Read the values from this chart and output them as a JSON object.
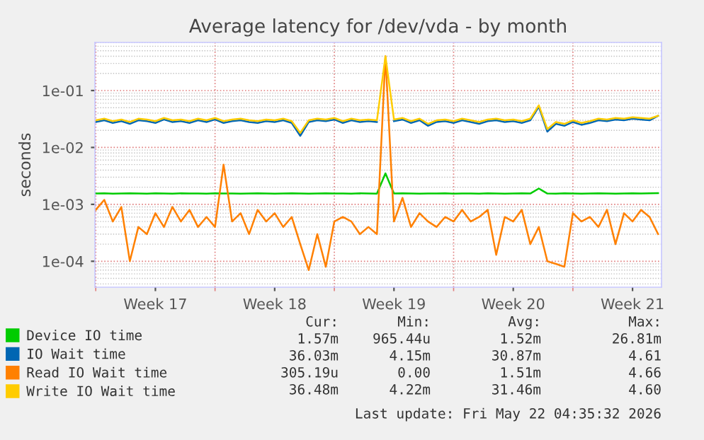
{
  "chart_data": {
    "type": "line",
    "title": "Average latency for /dev/vda - by month",
    "ylabel": "seconds",
    "categories": [
      null,
      null,
      null,
      null,
      null,
      null,
      null,
      "Week 17",
      null,
      null,
      null,
      null,
      null,
      null,
      null,
      null,
      null,
      null,
      null,
      null,
      null,
      "Week 18",
      null,
      null,
      null,
      null,
      null,
      null,
      null,
      null,
      null,
      null,
      null,
      null,
      null,
      "Week 19",
      null,
      null,
      null,
      null,
      null,
      null,
      null,
      null,
      null,
      null,
      null,
      null,
      null,
      "Week 20",
      null,
      null,
      null,
      null,
      null,
      null,
      null,
      null,
      null,
      null,
      null,
      null,
      null,
      "Week 21",
      null,
      null,
      null
    ],
    "series": [
      {
        "name": "Device IO time",
        "color": "#00cc00",
        "values": [
          0.00155,
          0.00156,
          0.00154,
          0.00155,
          0.00156,
          0.00155,
          0.00154,
          0.00156,
          0.00155,
          0.00154,
          0.00156,
          0.00155,
          0.00155,
          0.00154,
          0.00156,
          0.00155,
          0.00155,
          0.00154,
          0.00155,
          0.00156,
          0.00155,
          0.00154,
          0.00155,
          0.00156,
          0.00155,
          0.00154,
          0.00155,
          0.00156,
          0.00155,
          0.00155,
          0.00154,
          0.00156,
          0.00155,
          0.00154,
          0.0035,
          0.00155,
          0.00156,
          0.00155,
          0.00154,
          0.00155,
          0.00155,
          0.00156,
          0.00154,
          0.00155,
          0.00155,
          0.00154,
          0.00156,
          0.00155,
          0.00154,
          0.00155,
          0.00156,
          0.00155,
          0.0019,
          0.00155,
          0.00154,
          0.00156,
          0.00155,
          0.00154,
          0.00155,
          0.00156,
          0.00155,
          0.00154,
          0.00155,
          0.00156,
          0.00155,
          0.00156,
          0.00157
        ]
      },
      {
        "name": "IO Wait time",
        "color": "#0066b3",
        "values": [
          0.028,
          0.03,
          0.027,
          0.029,
          0.026,
          0.03,
          0.029,
          0.027,
          0.031,
          0.028,
          0.029,
          0.027,
          0.03,
          0.028,
          0.031,
          0.027,
          0.029,
          0.03,
          0.028,
          0.027,
          0.029,
          0.028,
          0.03,
          0.027,
          0.016,
          0.028,
          0.03,
          0.029,
          0.031,
          0.027,
          0.03,
          0.028,
          0.029,
          0.028,
          null,
          0.029,
          0.031,
          0.027,
          0.03,
          0.024,
          0.028,
          0.029,
          0.027,
          0.03,
          0.028,
          0.026,
          0.029,
          0.03,
          0.028,
          0.029,
          0.027,
          0.03,
          0.052,
          0.019,
          0.026,
          0.024,
          0.028,
          0.025,
          0.027,
          0.03,
          0.029,
          0.031,
          0.03,
          0.032,
          0.031,
          0.03,
          0.036
        ]
      },
      {
        "name": "Read IO Wait time",
        "color": "#ff8000",
        "values": [
          0.0008,
          0.0012,
          0.0005,
          0.0009,
          0.0001,
          0.0004,
          0.0003,
          0.0007,
          0.0004,
          0.0009,
          0.0005,
          0.0008,
          0.0004,
          0.0006,
          0.0004,
          0.005,
          0.0005,
          0.0007,
          0.0003,
          0.0008,
          0.0005,
          0.0007,
          0.0004,
          0.0006,
          0.0002,
          7e-05,
          0.0003,
          8e-05,
          0.0005,
          0.0006,
          0.0005,
          0.0003,
          0.0004,
          0.0003,
          0.4,
          0.0005,
          0.0013,
          0.0004,
          0.0007,
          0.0005,
          0.0004,
          0.0006,
          0.0005,
          0.0008,
          0.0005,
          0.0006,
          0.0008,
          0.00013,
          0.0006,
          0.0005,
          0.0008,
          0.0002,
          0.0004,
          0.0001,
          9e-05,
          8e-05,
          0.0007,
          0.0005,
          0.0006,
          0.0004,
          0.0008,
          0.0002,
          0.0007,
          0.0005,
          0.0008,
          0.0006,
          0.0003
        ]
      },
      {
        "name": "Write IO Wait time",
        "color": "#ffcc00",
        "values": [
          0.03,
          0.032,
          0.029,
          0.031,
          0.028,
          0.032,
          0.031,
          0.029,
          0.033,
          0.03,
          0.031,
          0.029,
          0.032,
          0.03,
          0.033,
          0.029,
          0.031,
          0.032,
          0.03,
          0.029,
          0.031,
          0.03,
          0.032,
          0.029,
          0.018,
          0.03,
          0.032,
          0.031,
          0.033,
          0.029,
          0.032,
          0.03,
          0.031,
          0.03,
          0.4,
          0.031,
          0.033,
          0.029,
          0.032,
          0.026,
          0.03,
          0.031,
          0.029,
          0.032,
          0.03,
          0.028,
          0.031,
          0.032,
          0.03,
          0.031,
          0.029,
          0.032,
          0.055,
          0.021,
          0.028,
          0.026,
          0.03,
          0.027,
          0.029,
          0.032,
          0.031,
          0.033,
          0.032,
          0.034,
          0.033,
          0.032,
          0.036
        ]
      }
    ],
    "log": "y",
    "ylim": [
      3.5e-05,
      0.7
    ],
    "yticks": [
      {
        "value": 0.0001,
        "label": "1e-04"
      },
      {
        "value": 0.001,
        "label": "1e-03"
      },
      {
        "value": 0.01,
        "label": "1e-02"
      },
      {
        "value": 0.1,
        "label": "1e-01"
      }
    ],
    "grid": true,
    "legend": "bottom left",
    "marker": "none",
    "line_style": "solid",
    "annotations": [
      "Cur:",
      "Min:",
      "Avg:",
      "Max:",
      "1.57m",
      "965.44u",
      "1.52m",
      "26.81m",
      "36.03m",
      "4.15m",
      "30.87m",
      "4.61",
      "305.19u",
      "0.00",
      "1.51m",
      "4.66",
      "36.48m",
      "4.22m",
      "31.46m",
      "4.60",
      "Last update: Fri May 22 04:35:32 2026"
    ]
  }
}
